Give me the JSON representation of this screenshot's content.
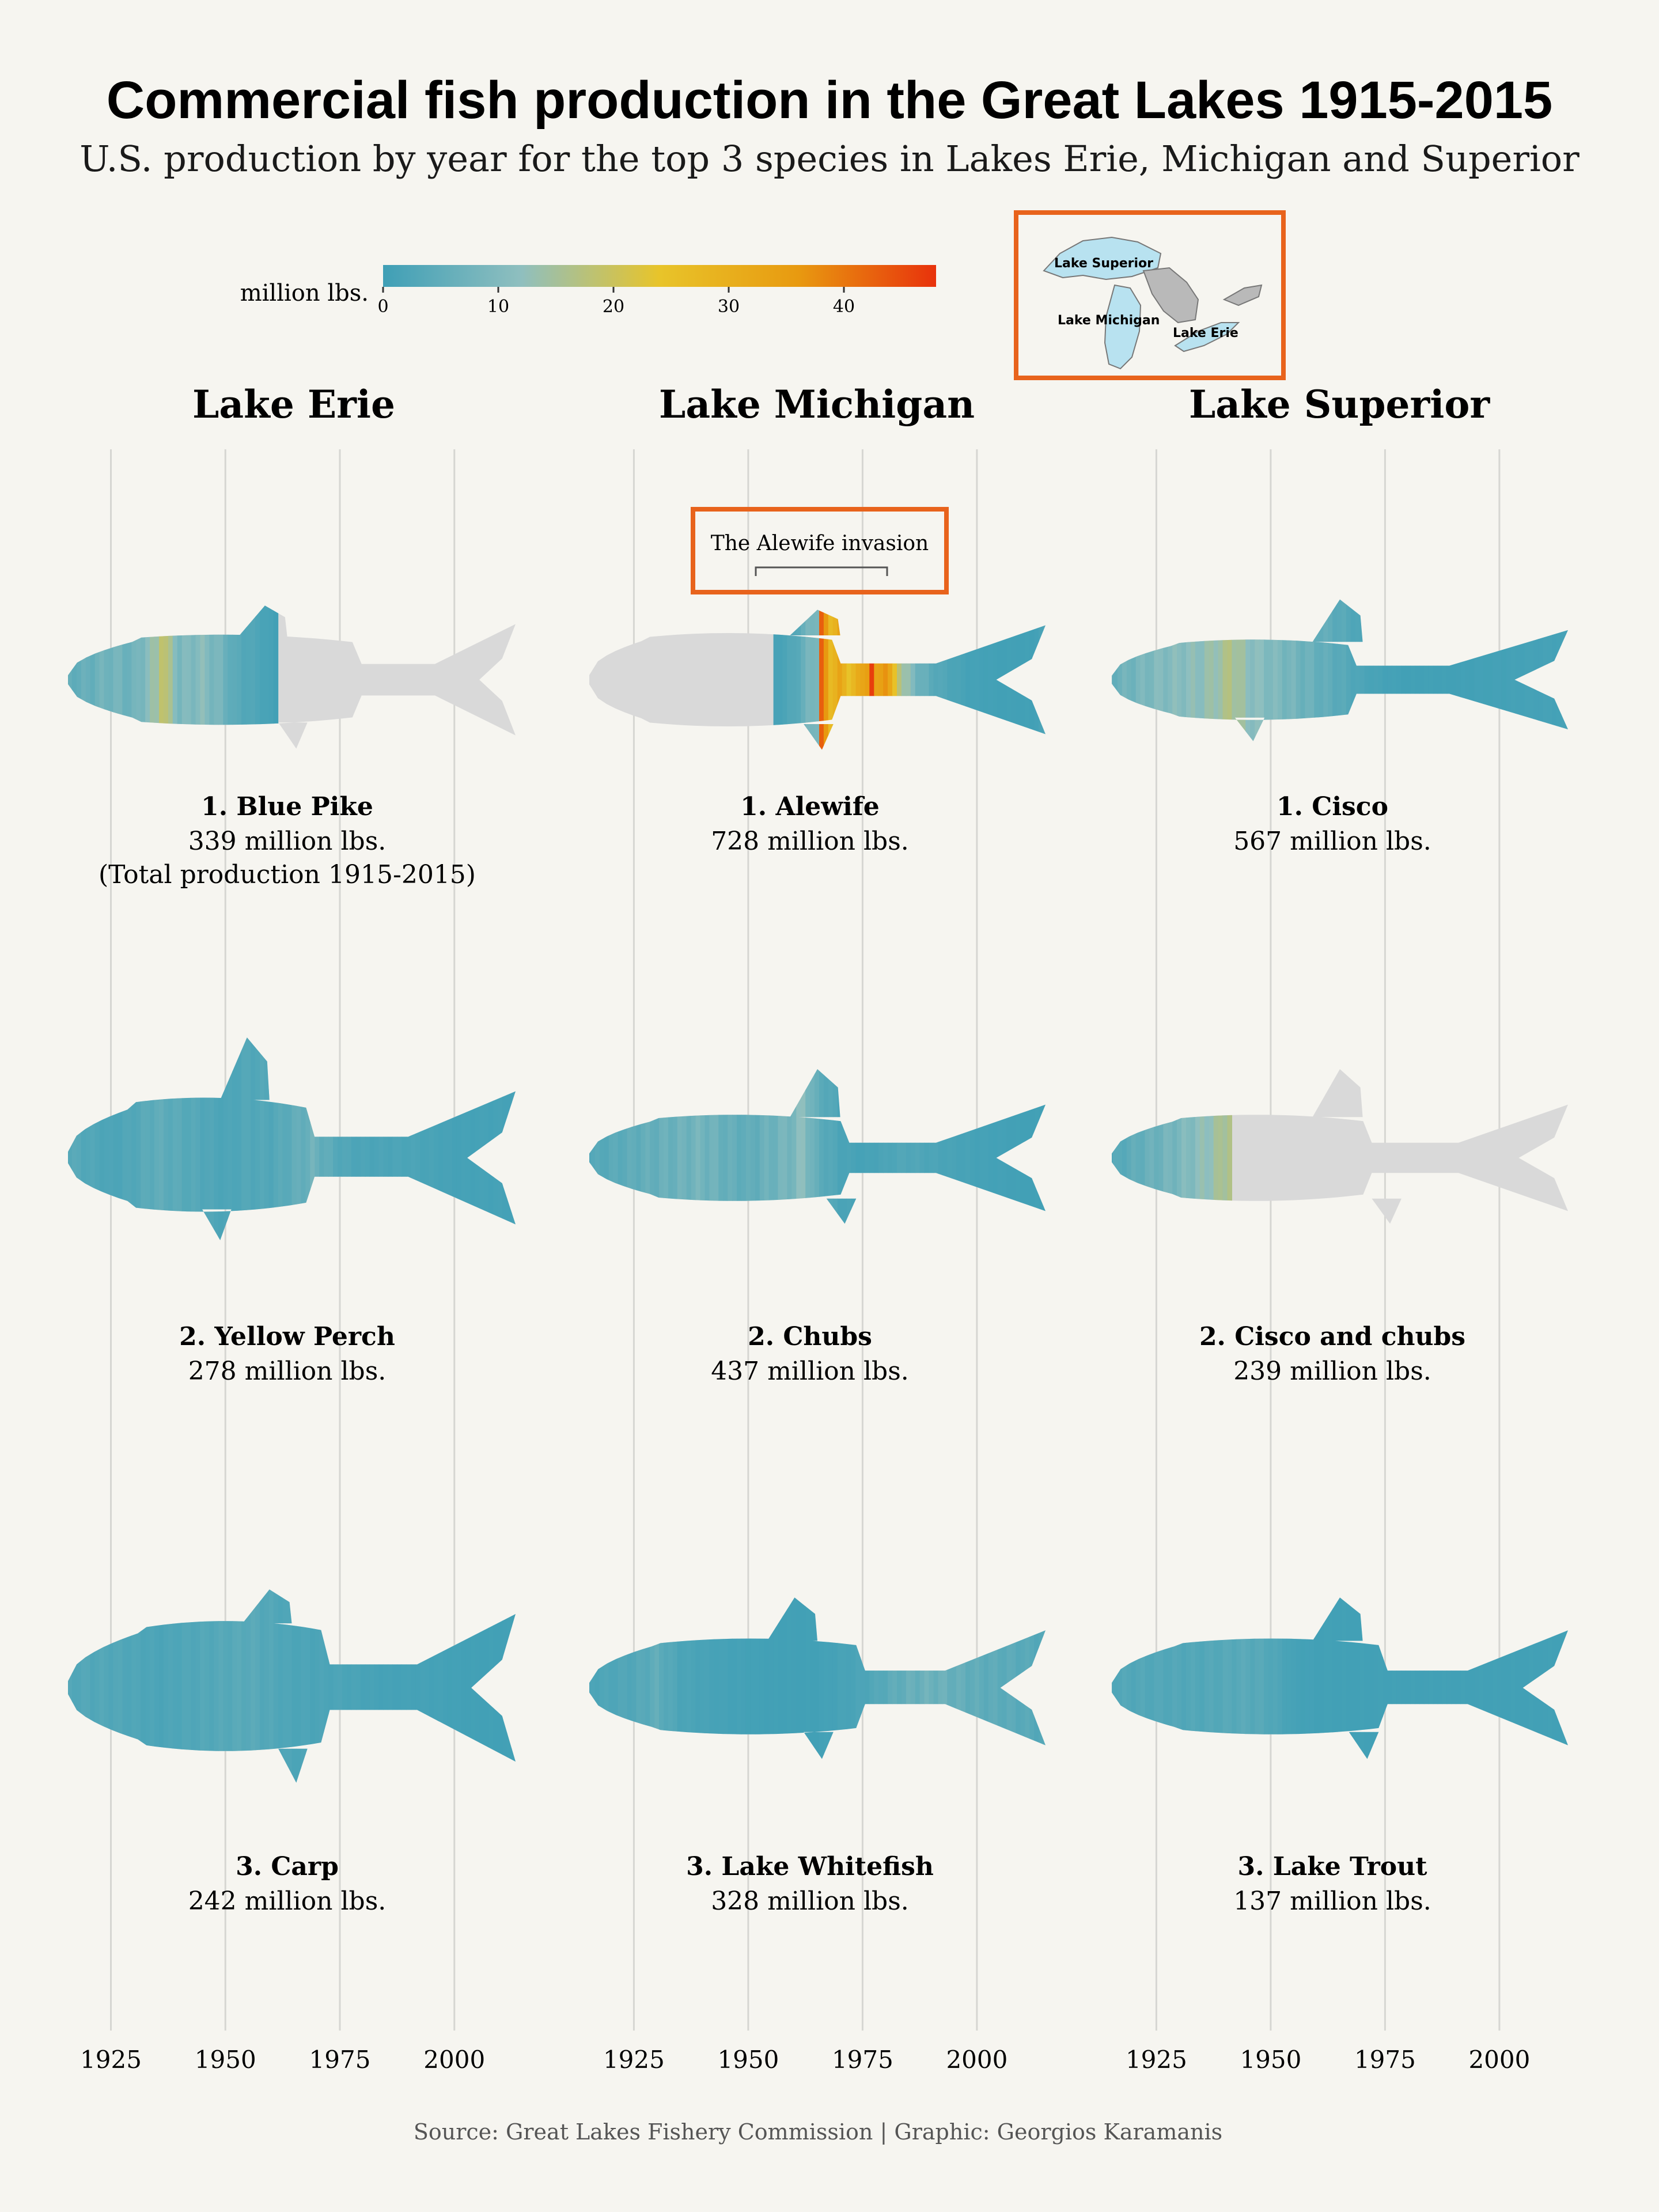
{
  "title": "Commercial fish production in the Great Lakes 1915-2015",
  "subtitle": "U.S. production by year for the top 3 species in Lakes Erie, Michigan and Superior",
  "legend": {
    "label": "million lbs.",
    "ticks": [
      "0",
      "10",
      "20",
      "30",
      "40"
    ],
    "colors": [
      "#3f9fb6",
      "#8fbfbf",
      "#e8c42a",
      "#e89a10",
      "#e8320c"
    ],
    "max": 48
  },
  "map": {
    "labels": [
      "Lake Superior",
      "Lake Michigan",
      "Lake Erie"
    ],
    "highlight_color": "#b8e2f0",
    "land_color": "#b9b9b9",
    "box_color": "#e8631c"
  },
  "annotation": {
    "text": "The Alewife invasion",
    "box_color": "#e8631c"
  },
  "x_axis": {
    "ticks": [
      "1925",
      "1950",
      "1975",
      "2000"
    ]
  },
  "lakes": [
    "Lake Erie",
    "Lake Michigan",
    "Lake Superior"
  ],
  "caption": "Source: Great Lakes Fishery Commission | Graphic: Georgios Karamanis",
  "chart_data": {
    "type": "heatmap",
    "title": "Commercial fish production in the Great Lakes 1915-2015",
    "xlabel": "",
    "ylabel": "",
    "x_range": [
      1915,
      2015
    ],
    "x_ticks": [
      1925,
      1950,
      1975,
      2000
    ],
    "unit": "million lbs.",
    "color_range": [
      0,
      48
    ],
    "no_data_color": "#d9d9d9",
    "panels": [
      {
        "lake": "Lake Erie",
        "rank": "1",
        "species": "Blue Pike",
        "name_label": "1. Blue Pike",
        "total_label": "339 million lbs.",
        "note": "(Total production 1915-2015)",
        "total": 339,
        "data_range": [
          1915,
          1961
        ],
        "shape": "pike",
        "yearly": [
          [
            1915,
            5
          ],
          [
            1920,
            6
          ],
          [
            1925,
            8
          ],
          [
            1930,
            7
          ],
          [
            1935,
            14
          ],
          [
            1936,
            20
          ],
          [
            1940,
            9
          ],
          [
            1945,
            11
          ],
          [
            1950,
            7
          ],
          [
            1952,
            4
          ],
          [
            1955,
            3
          ],
          [
            1960,
            1
          ],
          [
            1961,
            0.5
          ]
        ]
      },
      {
        "lake": "Lake Michigan",
        "rank": "1",
        "species": "Alewife",
        "name_label": "1. Alewife",
        "total_label": "728 million lbs.",
        "note": "",
        "total": 728,
        "data_range": [
          1956,
          2015
        ],
        "shape": "alewife",
        "yearly": [
          [
            1956,
            1
          ],
          [
            1960,
            3
          ],
          [
            1962,
            6
          ],
          [
            1965,
            10
          ],
          [
            1966,
            42
          ],
          [
            1967,
            35
          ],
          [
            1968,
            28
          ],
          [
            1970,
            32
          ],
          [
            1972,
            26
          ],
          [
            1974,
            30
          ],
          [
            1976,
            36
          ],
          [
            1977,
            46
          ],
          [
            1978,
            32
          ],
          [
            1980,
            38
          ],
          [
            1982,
            24
          ],
          [
            1984,
            14
          ],
          [
            1988,
            6
          ],
          [
            1992,
            3
          ],
          [
            1998,
            1
          ],
          [
            2005,
            0.5
          ],
          [
            2012,
            0.5
          ],
          [
            2015,
            2
          ]
        ]
      },
      {
        "lake": "Lake Superior",
        "rank": "1",
        "species": "Cisco",
        "name_label": "1. Cisco",
        "total_label": "567 million lbs.",
        "note": "",
        "total": 567,
        "data_range": [
          1915,
          2015
        ],
        "shape": "cisco",
        "yearly": [
          [
            1915,
            6
          ],
          [
            1920,
            8
          ],
          [
            1925,
            10
          ],
          [
            1930,
            11
          ],
          [
            1935,
            12
          ],
          [
            1940,
            15
          ],
          [
            1941,
            17
          ],
          [
            1945,
            12
          ],
          [
            1950,
            10
          ],
          [
            1955,
            8
          ],
          [
            1960,
            6
          ],
          [
            1965,
            4
          ],
          [
            1970,
            2
          ],
          [
            1975,
            1
          ],
          [
            1980,
            0.5
          ],
          [
            1990,
            0.5
          ],
          [
            2000,
            0.8
          ],
          [
            2010,
            1
          ],
          [
            2015,
            1
          ]
        ]
      },
      {
        "lake": "Lake Erie",
        "rank": "2",
        "species": "Yellow Perch",
        "name_label": "2. Yellow Perch",
        "total_label": "278 million lbs.",
        "note": "",
        "total": 278,
        "data_range": [
          1915,
          2015
        ],
        "shape": "perch",
        "yearly": [
          [
            1915,
            4
          ],
          [
            1920,
            3
          ],
          [
            1925,
            2
          ],
          [
            1930,
            3
          ],
          [
            1935,
            5
          ],
          [
            1940,
            4
          ],
          [
            1945,
            3
          ],
          [
            1950,
            2
          ],
          [
            1955,
            3
          ],
          [
            1960,
            3
          ],
          [
            1965,
            5
          ],
          [
            1969,
            7
          ],
          [
            1975,
            3
          ],
          [
            1980,
            2
          ],
          [
            1990,
            2
          ],
          [
            2000,
            1
          ],
          [
            2010,
            1
          ],
          [
            2015,
            1
          ]
        ]
      },
      {
        "lake": "Lake Michigan",
        "rank": "2",
        "species": "Chubs",
        "name_label": "2. Chubs",
        "total_label": "437 million lbs.",
        "note": "",
        "total": 437,
        "data_range": [
          1915,
          2015
        ],
        "shape": "chub",
        "yearly": [
          [
            1915,
            3
          ],
          [
            1920,
            4
          ],
          [
            1925,
            5
          ],
          [
            1930,
            6
          ],
          [
            1935,
            7
          ],
          [
            1940,
            8
          ],
          [
            1945,
            6
          ],
          [
            1950,
            5
          ],
          [
            1955,
            7
          ],
          [
            1960,
            9
          ],
          [
            1962,
            12
          ],
          [
            1965,
            5
          ],
          [
            1970,
            2
          ],
          [
            1975,
            1
          ],
          [
            1980,
            2
          ],
          [
            1985,
            3
          ],
          [
            1990,
            2
          ],
          [
            2000,
            1
          ],
          [
            2010,
            0.5
          ],
          [
            2015,
            0.5
          ]
        ]
      },
      {
        "lake": "Lake Superior",
        "rank": "2",
        "species": "Cisco and chubs",
        "name_label": "2. Cisco and chubs",
        "total_label": "239 million lbs.",
        "note": "",
        "total": 239,
        "data_range": [
          1915,
          1941
        ],
        "shape": "cisco2",
        "yearly": [
          [
            1915,
            3
          ],
          [
            1920,
            5
          ],
          [
            1925,
            7
          ],
          [
            1930,
            9
          ],
          [
            1935,
            12
          ],
          [
            1938,
            14
          ],
          [
            1940,
            16
          ],
          [
            1941,
            17
          ]
        ]
      },
      {
        "lake": "Lake Erie",
        "rank": "3",
        "species": "Carp",
        "name_label": "3. Carp",
        "total_label": "242 million lbs.",
        "note": "",
        "total": 242,
        "data_range": [
          1915,
          2015
        ],
        "shape": "carp",
        "yearly": [
          [
            1915,
            3
          ],
          [
            1925,
            3
          ],
          [
            1935,
            2
          ],
          [
            1945,
            3
          ],
          [
            1955,
            4
          ],
          [
            1965,
            2
          ],
          [
            1975,
            2
          ],
          [
            1985,
            1
          ],
          [
            1995,
            1
          ],
          [
            2005,
            0.5
          ],
          [
            2015,
            0.5
          ]
        ]
      },
      {
        "lake": "Lake Michigan",
        "rank": "3",
        "species": "Lake Whitefish",
        "name_label": "3. Lake Whitefish",
        "total_label": "328 million lbs.",
        "note": "",
        "total": 328,
        "data_range": [
          1915,
          2015
        ],
        "shape": "whitefish",
        "yearly": [
          [
            1915,
            2
          ],
          [
            1925,
            3
          ],
          [
            1930,
            5
          ],
          [
            1935,
            2
          ],
          [
            1945,
            1
          ],
          [
            1955,
            0.5
          ],
          [
            1965,
            0.5
          ],
          [
            1975,
            2
          ],
          [
            1985,
            6
          ],
          [
            1990,
            7
          ],
          [
            1995,
            6
          ],
          [
            2000,
            5
          ],
          [
            2010,
            4
          ],
          [
            2015,
            3
          ]
        ]
      },
      {
        "lake": "Lake Superior",
        "rank": "3",
        "species": "Lake Trout",
        "name_label": "3. Lake Trout",
        "total_label": "137 million lbs.",
        "note": "",
        "total": 137,
        "data_range": [
          1915,
          2015
        ],
        "shape": "trout",
        "yearly": [
          [
            1915,
            3
          ],
          [
            1925,
            3
          ],
          [
            1935,
            3
          ],
          [
            1945,
            4
          ],
          [
            1950,
            3
          ],
          [
            1955,
            1
          ],
          [
            1960,
            0.5
          ],
          [
            1970,
            0.5
          ],
          [
            1980,
            0.5
          ],
          [
            1990,
            0.5
          ],
          [
            2000,
            0.5
          ],
          [
            2015,
            0.5
          ]
        ]
      }
    ]
  }
}
